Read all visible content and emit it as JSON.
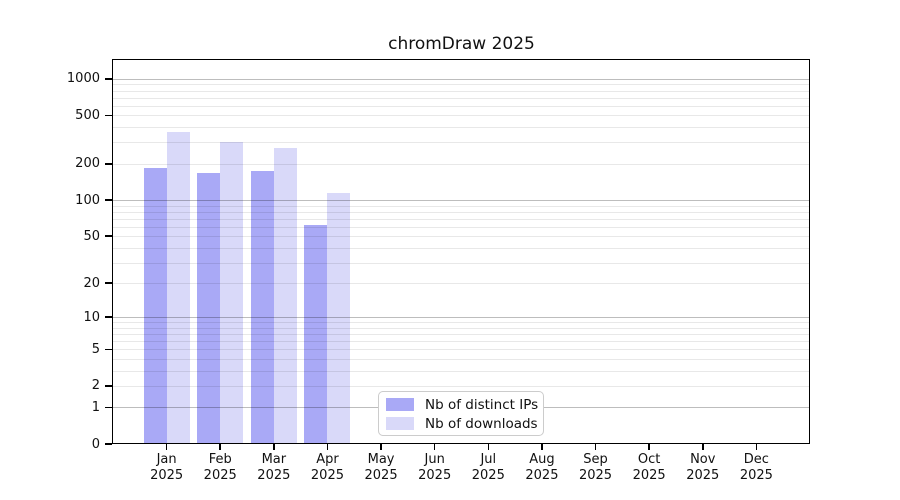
{
  "figure": {
    "title": "chromDraw 2025"
  },
  "chart_data": {
    "type": "bar",
    "title": "chromDraw 2025",
    "xlabel": "",
    "ylabel": "",
    "y_scale": "log10(1+x)",
    "ylim": [
      0,
      1430
    ],
    "y_ticks": [
      0,
      1,
      2,
      5,
      10,
      20,
      50,
      100,
      200,
      500,
      1000
    ],
    "grid": true,
    "legend_position": "bottom-center",
    "months": [
      "Jan",
      "Feb",
      "Mar",
      "Apr",
      "May",
      "Jun",
      "Jul",
      "Aug",
      "Sep",
      "Oct",
      "Nov",
      "Dec"
    ],
    "year": "2025",
    "series": [
      {
        "name": "Nb of distinct IPs",
        "color": "#a9a9f6",
        "values": [
          185,
          167,
          174,
          62,
          0,
          0,
          0,
          0,
          0,
          0,
          0,
          0
        ]
      },
      {
        "name": "Nb of downloads",
        "color": "#d9d9f9",
        "values": [
          365,
          305,
          270,
          115,
          0,
          0,
          0,
          0,
          0,
          0,
          0,
          0
        ]
      }
    ],
    "colors": {
      "axis": "#000000",
      "grid_major": "#bdbdbd",
      "grid_minor": "#e8e8e8",
      "legend_border": "#cccccc",
      "background": "#ffffff"
    }
  }
}
